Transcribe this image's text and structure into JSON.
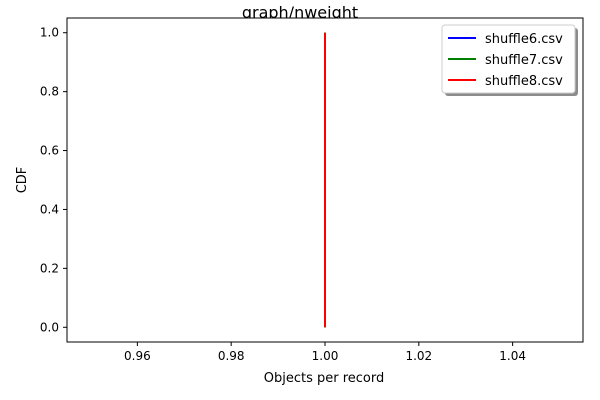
{
  "chart_data": {
    "type": "line",
    "title": "graph/nweight",
    "xlabel": "Objects per record",
    "ylabel": "CDF",
    "xlim": [
      0.945,
      1.055
    ],
    "ylim": [
      -0.05,
      1.05
    ],
    "xticks": [
      0.96,
      0.98,
      1.0,
      1.02,
      1.04
    ],
    "xtick_labels": [
      "0.96",
      "0.98",
      "1.00",
      "1.02",
      "1.04"
    ],
    "yticks": [
      0.0,
      0.2,
      0.4,
      0.6,
      0.8,
      1.0
    ],
    "ytick_labels": [
      "0.0",
      "0.2",
      "0.4",
      "0.6",
      "0.8",
      "1.0"
    ],
    "grid": false,
    "legend_position": "top-right",
    "series": [
      {
        "name": "shuffle6.csv",
        "color": "#0000ff",
        "x": [
          1.0,
          1.0
        ],
        "y": [
          0.0,
          1.0
        ]
      },
      {
        "name": "shuffle7.csv",
        "color": "#008000",
        "x": [
          1.0,
          1.0
        ],
        "y": [
          0.0,
          1.0
        ]
      },
      {
        "name": "shuffle8.csv",
        "color": "#ff0000",
        "x": [
          1.0,
          1.0
        ],
        "y": [
          0.0,
          1.0
        ]
      }
    ]
  }
}
